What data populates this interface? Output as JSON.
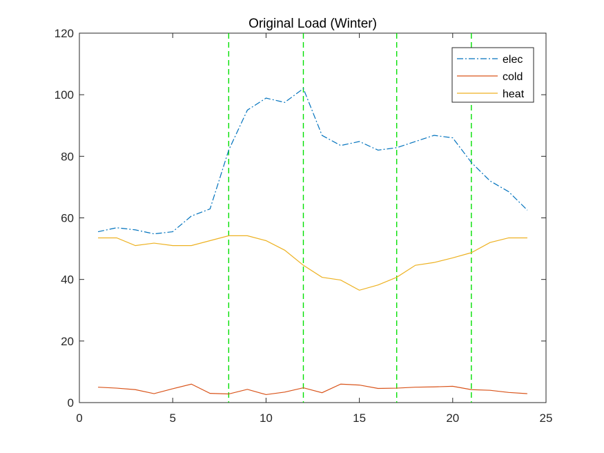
{
  "chart_data": {
    "type": "line",
    "title": "Original Load (Winter)",
    "xlabel": "",
    "ylabel": "",
    "xlim": [
      0,
      25
    ],
    "ylim": [
      0,
      120
    ],
    "xticks": [
      0,
      5,
      10,
      15,
      20,
      25
    ],
    "yticks": [
      0,
      20,
      40,
      60,
      80,
      100,
      120
    ],
    "grid": false,
    "legend_position": "top-right",
    "x": [
      1,
      2,
      3,
      4,
      5,
      6,
      7,
      8,
      9,
      10,
      11,
      12,
      13,
      14,
      15,
      16,
      17,
      18,
      19,
      20,
      21,
      22,
      23,
      24
    ],
    "series": [
      {
        "name": "elec",
        "color": "#0072BD",
        "line_style": "dash-dot",
        "values": [
          55.5,
          56.8,
          56.1,
          54.8,
          55.5,
          60.6,
          62.9,
          82.0,
          95.0,
          98.9,
          97.5,
          102.0,
          86.8,
          83.5,
          84.8,
          82.0,
          82.8,
          84.8,
          86.8,
          86.0,
          78.0,
          72.0,
          68.5,
          62.5
        ]
      },
      {
        "name": "cold",
        "color": "#D95319",
        "line_style": "solid",
        "values": [
          5.0,
          4.7,
          4.2,
          2.9,
          4.5,
          6.0,
          3.0,
          2.8,
          4.3,
          2.6,
          3.4,
          4.8,
          3.2,
          6.0,
          5.7,
          4.6,
          4.7,
          5.0,
          5.1,
          5.3,
          4.2,
          4.0,
          3.3,
          2.9
        ]
      },
      {
        "name": "heat",
        "color": "#EDB120",
        "line_style": "solid",
        "values": [
          53.5,
          53.5,
          51.0,
          51.8,
          51.0,
          51.0,
          52.6,
          54.2,
          54.2,
          52.6,
          49.5,
          44.6,
          40.7,
          39.8,
          36.5,
          38.2,
          40.7,
          44.6,
          45.5,
          47.0,
          48.7,
          52.0,
          53.5,
          53.5
        ]
      }
    ],
    "vertical_lines": [
      {
        "x": 8,
        "color": "#00E000",
        "line_style": "dashed"
      },
      {
        "x": 12,
        "color": "#00E000",
        "line_style": "dashed"
      },
      {
        "x": 17,
        "color": "#00E000",
        "line_style": "dashed"
      },
      {
        "x": 21,
        "color": "#00E000",
        "line_style": "dashed"
      }
    ]
  }
}
